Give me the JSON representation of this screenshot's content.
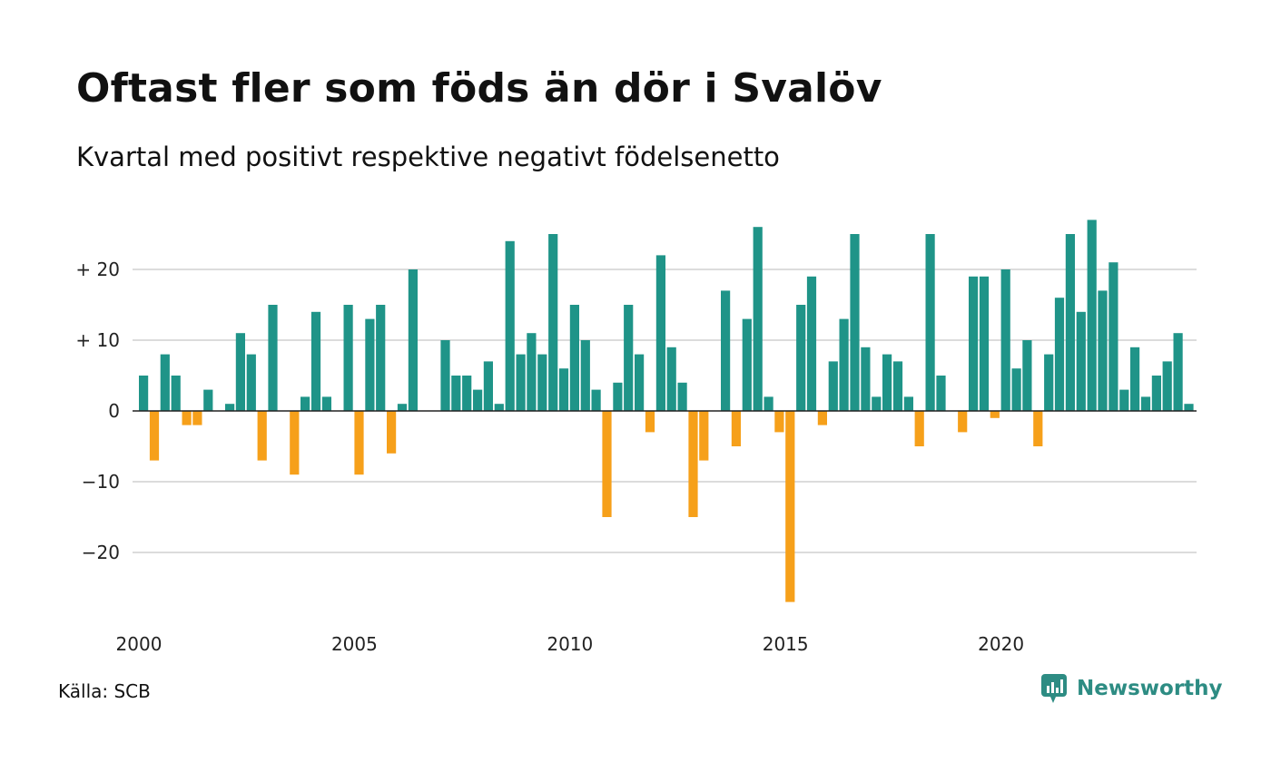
{
  "title": "Oftast fler som föds än dör i Svalöv",
  "subtitle": "Kvartal med positivt respektive negativt födelsenetto",
  "source": "Källa: SCB",
  "brand": "Newsworthy",
  "colors": {
    "positive": "#1f9488",
    "negative": "#f6a01a",
    "grid": "#dcdcdc",
    "zero": "#222222",
    "brand": "#2d8c83"
  },
  "chart_data": {
    "type": "bar",
    "x_start": "2000 Q1",
    "xticks": [
      "2000",
      "2005",
      "2010",
      "2015",
      "2020"
    ],
    "yticks": [
      {
        "value": 20,
        "label": "+ 20"
      },
      {
        "value": 10,
        "label": "+ 10"
      },
      {
        "value": 0,
        "label": "0"
      },
      {
        "value": -10,
        "label": "−10"
      },
      {
        "value": -20,
        "label": "−20"
      }
    ],
    "ylim": [
      -28,
      28
    ],
    "grid": true,
    "values": [
      5,
      -7,
      8,
      5,
      -2,
      -2,
      3,
      0,
      1,
      11,
      8,
      -7,
      15,
      0,
      -9,
      2,
      14,
      2,
      0,
      15,
      -9,
      13,
      15,
      -6,
      1,
      20,
      0,
      0,
      10,
      5,
      5,
      3,
      7,
      1,
      24,
      8,
      11,
      8,
      25,
      6,
      15,
      10,
      3,
      -15,
      4,
      15,
      8,
      -3,
      22,
      9,
      4,
      -15,
      -7,
      0,
      17,
      -5,
      13,
      26,
      2,
      -3,
      -27,
      15,
      19,
      -2,
      7,
      13,
      25,
      9,
      2,
      8,
      7,
      2,
      -5,
      25,
      5,
      0,
      -3,
      19,
      19,
      -1,
      20,
      6,
      10,
      -5,
      8,
      16,
      25,
      14,
      27,
      17,
      21,
      3,
      9,
      2,
      5,
      7,
      11,
      1
    ]
  }
}
